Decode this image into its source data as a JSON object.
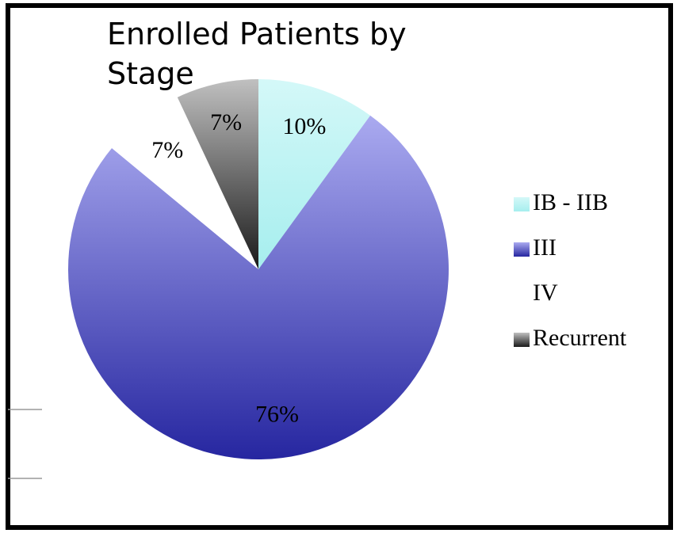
{
  "chart_data": {
    "type": "pie",
    "title": "Enrolled Patients by Stage",
    "categories": [
      "IB - IIB",
      "III",
      "IV",
      "Recurrent"
    ],
    "values": [
      10,
      76,
      7,
      7
    ],
    "value_labels": [
      "10%",
      "76%",
      "7%",
      "7%"
    ],
    "colors": [
      [
        "#d4f8f8",
        "#a6eeee"
      ],
      [
        "#aaaaf0",
        "#2626a0"
      ],
      [
        "#ffffff",
        "#ffffff"
      ],
      [
        "#c0c0c0",
        "#1a1a1a"
      ]
    ],
    "legend": "right"
  }
}
